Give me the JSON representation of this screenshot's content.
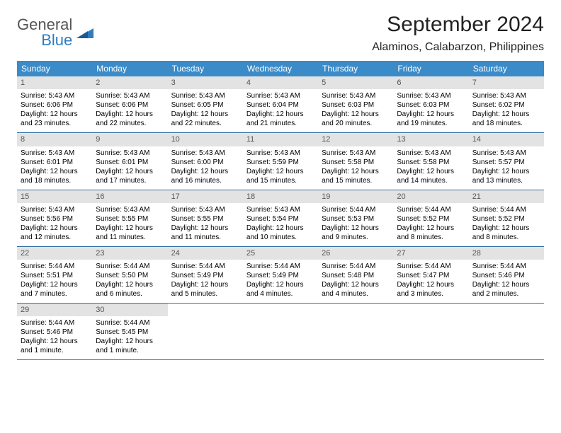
{
  "logo": {
    "text1": "General",
    "text2": "Blue"
  },
  "title": "September 2024",
  "location": "Alaminos, Calabarzon, Philippines",
  "headers": {
    "bg": "#3b8bc9",
    "text_color": "#ffffff",
    "labels": [
      "Sunday",
      "Monday",
      "Tuesday",
      "Wednesday",
      "Thursday",
      "Friday",
      "Saturday"
    ]
  },
  "daynum_bg": "#e3e3e3",
  "row_border": "#2f6fa8",
  "days": [
    {
      "n": "1",
      "sr": "Sunrise: 5:43 AM",
      "ss": "Sunset: 6:06 PM",
      "d1": "Daylight: 12 hours",
      "d2": "and 23 minutes."
    },
    {
      "n": "2",
      "sr": "Sunrise: 5:43 AM",
      "ss": "Sunset: 6:06 PM",
      "d1": "Daylight: 12 hours",
      "d2": "and 22 minutes."
    },
    {
      "n": "3",
      "sr": "Sunrise: 5:43 AM",
      "ss": "Sunset: 6:05 PM",
      "d1": "Daylight: 12 hours",
      "d2": "and 22 minutes."
    },
    {
      "n": "4",
      "sr": "Sunrise: 5:43 AM",
      "ss": "Sunset: 6:04 PM",
      "d1": "Daylight: 12 hours",
      "d2": "and 21 minutes."
    },
    {
      "n": "5",
      "sr": "Sunrise: 5:43 AM",
      "ss": "Sunset: 6:03 PM",
      "d1": "Daylight: 12 hours",
      "d2": "and 20 minutes."
    },
    {
      "n": "6",
      "sr": "Sunrise: 5:43 AM",
      "ss": "Sunset: 6:03 PM",
      "d1": "Daylight: 12 hours",
      "d2": "and 19 minutes."
    },
    {
      "n": "7",
      "sr": "Sunrise: 5:43 AM",
      "ss": "Sunset: 6:02 PM",
      "d1": "Daylight: 12 hours",
      "d2": "and 18 minutes."
    },
    {
      "n": "8",
      "sr": "Sunrise: 5:43 AM",
      "ss": "Sunset: 6:01 PM",
      "d1": "Daylight: 12 hours",
      "d2": "and 18 minutes."
    },
    {
      "n": "9",
      "sr": "Sunrise: 5:43 AM",
      "ss": "Sunset: 6:01 PM",
      "d1": "Daylight: 12 hours",
      "d2": "and 17 minutes."
    },
    {
      "n": "10",
      "sr": "Sunrise: 5:43 AM",
      "ss": "Sunset: 6:00 PM",
      "d1": "Daylight: 12 hours",
      "d2": "and 16 minutes."
    },
    {
      "n": "11",
      "sr": "Sunrise: 5:43 AM",
      "ss": "Sunset: 5:59 PM",
      "d1": "Daylight: 12 hours",
      "d2": "and 15 minutes."
    },
    {
      "n": "12",
      "sr": "Sunrise: 5:43 AM",
      "ss": "Sunset: 5:58 PM",
      "d1": "Daylight: 12 hours",
      "d2": "and 15 minutes."
    },
    {
      "n": "13",
      "sr": "Sunrise: 5:43 AM",
      "ss": "Sunset: 5:58 PM",
      "d1": "Daylight: 12 hours",
      "d2": "and 14 minutes."
    },
    {
      "n": "14",
      "sr": "Sunrise: 5:43 AM",
      "ss": "Sunset: 5:57 PM",
      "d1": "Daylight: 12 hours",
      "d2": "and 13 minutes."
    },
    {
      "n": "15",
      "sr": "Sunrise: 5:43 AM",
      "ss": "Sunset: 5:56 PM",
      "d1": "Daylight: 12 hours",
      "d2": "and 12 minutes."
    },
    {
      "n": "16",
      "sr": "Sunrise: 5:43 AM",
      "ss": "Sunset: 5:55 PM",
      "d1": "Daylight: 12 hours",
      "d2": "and 11 minutes."
    },
    {
      "n": "17",
      "sr": "Sunrise: 5:43 AM",
      "ss": "Sunset: 5:55 PM",
      "d1": "Daylight: 12 hours",
      "d2": "and 11 minutes."
    },
    {
      "n": "18",
      "sr": "Sunrise: 5:43 AM",
      "ss": "Sunset: 5:54 PM",
      "d1": "Daylight: 12 hours",
      "d2": "and 10 minutes."
    },
    {
      "n": "19",
      "sr": "Sunrise: 5:44 AM",
      "ss": "Sunset: 5:53 PM",
      "d1": "Daylight: 12 hours",
      "d2": "and 9 minutes."
    },
    {
      "n": "20",
      "sr": "Sunrise: 5:44 AM",
      "ss": "Sunset: 5:52 PM",
      "d1": "Daylight: 12 hours",
      "d2": "and 8 minutes."
    },
    {
      "n": "21",
      "sr": "Sunrise: 5:44 AM",
      "ss": "Sunset: 5:52 PM",
      "d1": "Daylight: 12 hours",
      "d2": "and 8 minutes."
    },
    {
      "n": "22",
      "sr": "Sunrise: 5:44 AM",
      "ss": "Sunset: 5:51 PM",
      "d1": "Daylight: 12 hours",
      "d2": "and 7 minutes."
    },
    {
      "n": "23",
      "sr": "Sunrise: 5:44 AM",
      "ss": "Sunset: 5:50 PM",
      "d1": "Daylight: 12 hours",
      "d2": "and 6 minutes."
    },
    {
      "n": "24",
      "sr": "Sunrise: 5:44 AM",
      "ss": "Sunset: 5:49 PM",
      "d1": "Daylight: 12 hours",
      "d2": "and 5 minutes."
    },
    {
      "n": "25",
      "sr": "Sunrise: 5:44 AM",
      "ss": "Sunset: 5:49 PM",
      "d1": "Daylight: 12 hours",
      "d2": "and 4 minutes."
    },
    {
      "n": "26",
      "sr": "Sunrise: 5:44 AM",
      "ss": "Sunset: 5:48 PM",
      "d1": "Daylight: 12 hours",
      "d2": "and 4 minutes."
    },
    {
      "n": "27",
      "sr": "Sunrise: 5:44 AM",
      "ss": "Sunset: 5:47 PM",
      "d1": "Daylight: 12 hours",
      "d2": "and 3 minutes."
    },
    {
      "n": "28",
      "sr": "Sunrise: 5:44 AM",
      "ss": "Sunset: 5:46 PM",
      "d1": "Daylight: 12 hours",
      "d2": "and 2 minutes."
    },
    {
      "n": "29",
      "sr": "Sunrise: 5:44 AM",
      "ss": "Sunset: 5:46 PM",
      "d1": "Daylight: 12 hours",
      "d2": "and 1 minute."
    },
    {
      "n": "30",
      "sr": "Sunrise: 5:44 AM",
      "ss": "Sunset: 5:45 PM",
      "d1": "Daylight: 12 hours",
      "d2": "and 1 minute."
    }
  ]
}
